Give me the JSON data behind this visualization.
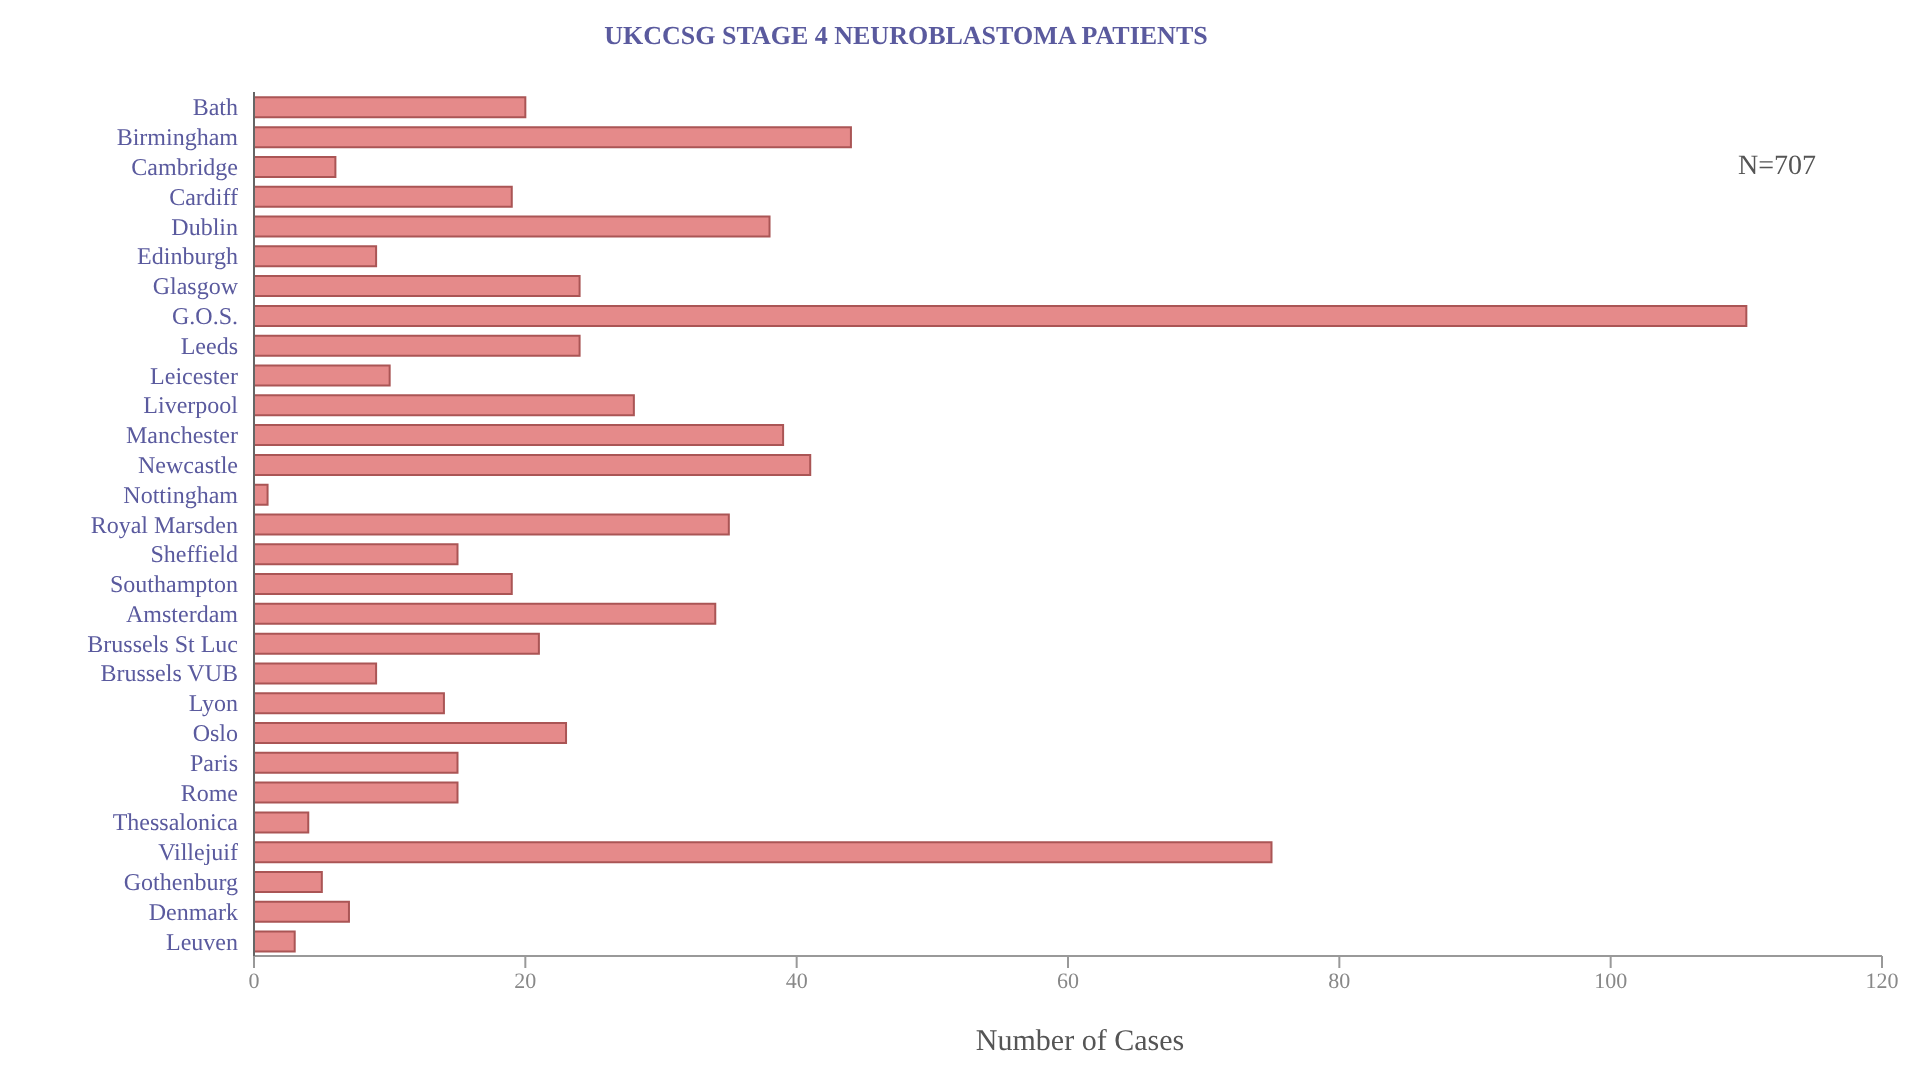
{
  "chart_data": {
    "type": "bar",
    "orientation": "horizontal",
    "title": "UKCCSG STAGE 4 NEUROBLASTOMA PATIENTS",
    "xlabel": "Number of Cases",
    "annotations": [
      "N=707"
    ],
    "categories": [
      "Bath",
      "Birmingham",
      "Cambridge",
      "Cardiff",
      "Dublin",
      "Edinburgh",
      "Glasgow",
      "G.O.S.",
      "Leeds",
      "Leicester",
      "Liverpool",
      "Manchester",
      "Newcastle",
      "Nottingham",
      "Royal Marsden",
      "Sheffield",
      "Southampton",
      "Amsterdam",
      "Brussels St Luc",
      "Brussels VUB",
      "Lyon",
      "Oslo",
      "Paris",
      "Rome",
      "Thessalonica",
      "Villejuif",
      "Gothenburg",
      "Denmark",
      "Leuven"
    ],
    "values": [
      20,
      44,
      6,
      19,
      38,
      9,
      24,
      110,
      24,
      10,
      28,
      39,
      41,
      1,
      35,
      15,
      19,
      34,
      21,
      9,
      14,
      23,
      15,
      15,
      4,
      75,
      5,
      7,
      3
    ],
    "color": "#e58a8a",
    "xlim": [
      0,
      120
    ],
    "xticks": [
      0,
      20,
      40,
      60,
      80,
      100,
      120
    ]
  }
}
